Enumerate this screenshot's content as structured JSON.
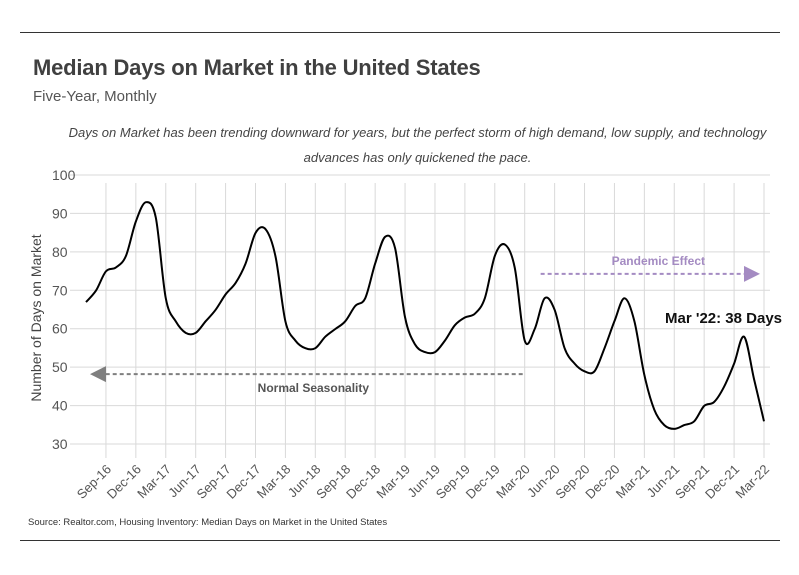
{
  "header": {
    "title": "Median Days on Market in the United States",
    "subtitle": "Five-Year, Monthly",
    "description": "Days on Market has been trending downward for years, but the perfect storm of high demand, low supply, and technology advances has only quickened the pace."
  },
  "footer": {
    "source": "Source:  Realtor.com, Housing Inventory: Median Days on Market in the United States"
  },
  "colors": {
    "line": "#000000",
    "grid": "#d9d9d9",
    "annotation_gray": "#7f7f7f",
    "annotation_purple": "#a48bc2"
  },
  "chart_data": {
    "type": "line",
    "title": "Median Days on Market in the United States",
    "subtitle": "Five-Year, Monthly",
    "ylabel": "Number of Days on Market",
    "xlabel": "",
    "ylim": [
      30,
      100
    ],
    "yticks": [
      30,
      40,
      50,
      60,
      70,
      80,
      90,
      100
    ],
    "grid": true,
    "x_tick_labels": [
      "Sep-16",
      "Dec-16",
      "Mar-17",
      "Jun-17",
      "Sep-17",
      "Dec-17",
      "Mar-18",
      "Jun-18",
      "Sep-18",
      "Dec-18",
      "Mar-19",
      "Jun-19",
      "Sep-19",
      "Dec-19",
      "Mar-20",
      "Jun-20",
      "Sep-20",
      "Dec-20",
      "Mar-21",
      "Jun-21",
      "Sep-21",
      "Dec-21",
      "Mar-22"
    ],
    "x": [
      "Jul-16",
      "Aug-16",
      "Sep-16",
      "Oct-16",
      "Nov-16",
      "Dec-16",
      "Jan-17",
      "Feb-17",
      "Mar-17",
      "Apr-17",
      "May-17",
      "Jun-17",
      "Jul-17",
      "Aug-17",
      "Sep-17",
      "Oct-17",
      "Nov-17",
      "Dec-17",
      "Jan-18",
      "Feb-18",
      "Mar-18",
      "Apr-18",
      "May-18",
      "Jun-18",
      "Jul-18",
      "Aug-18",
      "Sep-18",
      "Oct-18",
      "Nov-18",
      "Dec-18",
      "Jan-19",
      "Feb-19",
      "Mar-19",
      "Apr-19",
      "May-19",
      "Jun-19",
      "Jul-19",
      "Aug-19",
      "Sep-19",
      "Oct-19",
      "Nov-19",
      "Dec-19",
      "Jan-20",
      "Feb-20",
      "Mar-20",
      "Apr-20",
      "May-20",
      "Jun-20",
      "Jul-20",
      "Aug-20",
      "Sep-20",
      "Oct-20",
      "Nov-20",
      "Dec-20",
      "Jan-21",
      "Feb-21",
      "Mar-21",
      "Apr-21",
      "May-21",
      "Jun-21",
      "Jul-21",
      "Aug-21",
      "Sep-21",
      "Oct-21",
      "Nov-21",
      "Dec-21",
      "Jan-22",
      "Feb-22",
      "Mar-22"
    ],
    "series": [
      {
        "values": [
          69,
          72,
          77,
          78,
          81,
          90,
          95,
          91,
          70,
          64,
          61,
          61,
          64,
          67,
          71,
          74,
          79,
          87,
          88,
          81,
          64,
          59,
          57,
          57,
          60,
          62,
          64,
          68,
          70,
          79,
          86,
          83,
          65,
          58,
          56,
          56,
          59,
          63,
          65,
          66,
          70,
          81,
          84,
          78,
          59,
          62,
          70,
          67,
          57,
          53,
          51,
          51,
          57,
          64,
          70,
          64,
          50,
          41,
          37,
          36,
          37,
          38,
          42,
          43,
          47,
          53,
          60,
          49,
          38
        ]
      }
    ],
    "annotations": [
      {
        "text": "Normal Seasonality",
        "from": "Mar-20",
        "to": "Jul-16",
        "y": 50,
        "style": "dashed-arrow-left"
      },
      {
        "text": "Pandemic Effect",
        "from": "May-20",
        "to": "Mar-22",
        "y": 74,
        "style": "dashed-arrow-right"
      },
      {
        "text": "Mar '22: 38 Days",
        "at": "Mar-22",
        "value": 38
      }
    ]
  }
}
